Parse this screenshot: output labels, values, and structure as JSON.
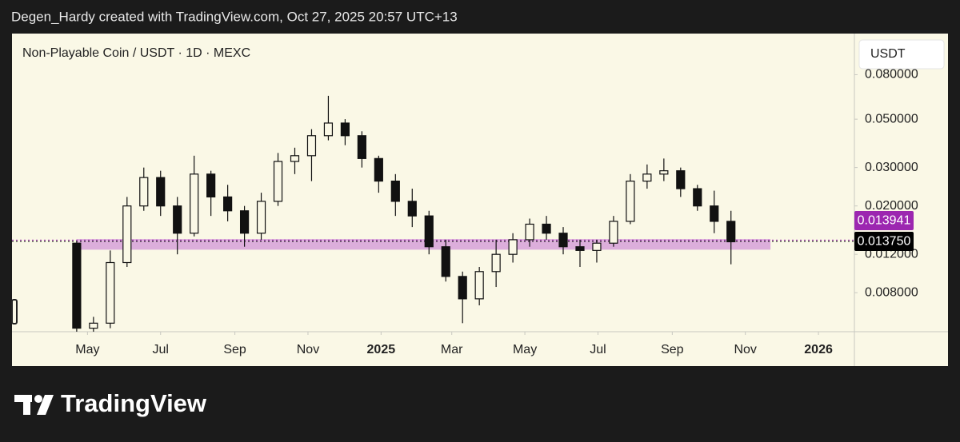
{
  "header": {
    "credit": "Degen_Hardy created with TradingView.com, Oct 27, 2025 20:57 UTC+13"
  },
  "brand": "TradingView",
  "chart_data": {
    "type": "candlestick",
    "title": "Non-Playable Coin / USDT · 1D · MEXC",
    "currency": "USDT",
    "log_scale": true,
    "x": [
      "2024-04-22",
      "2024-05-06",
      "2024-05-20",
      "2024-06-03",
      "2024-06-17",
      "2024-07-01",
      "2024-07-15",
      "2024-07-29",
      "2024-08-12",
      "2024-08-26",
      "2024-09-09",
      "2024-09-23",
      "2024-10-07",
      "2024-10-21",
      "2024-11-04",
      "2024-11-18",
      "2024-12-02",
      "2024-12-16",
      "2024-12-30",
      "2025-01-13",
      "2025-01-27",
      "2025-02-10",
      "2025-02-24",
      "2025-03-10",
      "2025-03-24",
      "2025-04-07",
      "2025-04-21",
      "2025-05-05",
      "2025-05-19",
      "2025-06-02",
      "2025-06-16",
      "2025-06-30",
      "2025-07-14",
      "2025-07-28",
      "2025-08-11",
      "2025-08-25",
      "2025-09-08",
      "2025-09-22",
      "2025-10-06",
      "2025-10-20"
    ],
    "open": [
      0.0135,
      0.0055,
      0.0058,
      0.011,
      0.02,
      0.027,
      0.02,
      0.015,
      0.028,
      0.022,
      0.019,
      0.015,
      0.021,
      0.032,
      0.034,
      0.042,
      0.048,
      0.042,
      0.033,
      0.026,
      0.021,
      0.018,
      0.013,
      0.0095,
      0.0075,
      0.01,
      0.012,
      0.014,
      0.0165,
      0.015,
      0.013,
      0.0125,
      0.0135,
      0.017,
      0.026,
      0.028,
      0.029,
      0.024,
      0.02,
      0.017
    ],
    "high": [
      0.0138,
      0.0062,
      0.0125,
      0.022,
      0.03,
      0.029,
      0.022,
      0.034,
      0.029,
      0.025,
      0.02,
      0.023,
      0.035,
      0.037,
      0.045,
      0.064,
      0.05,
      0.044,
      0.034,
      0.028,
      0.024,
      0.019,
      0.014,
      0.01,
      0.0105,
      0.014,
      0.015,
      0.0175,
      0.018,
      0.016,
      0.014,
      0.014,
      0.018,
      0.028,
      0.031,
      0.033,
      0.03,
      0.025,
      0.0235,
      0.019
    ],
    "low": [
      0.005,
      0.005,
      0.0055,
      0.0105,
      0.019,
      0.018,
      0.012,
      0.0145,
      0.018,
      0.017,
      0.013,
      0.014,
      0.02,
      0.028,
      0.026,
      0.04,
      0.038,
      0.03,
      0.023,
      0.018,
      0.016,
      0.012,
      0.009,
      0.0058,
      0.007,
      0.0085,
      0.011,
      0.013,
      0.014,
      0.012,
      0.0105,
      0.011,
      0.013,
      0.0165,
      0.024,
      0.026,
      0.022,
      0.019,
      0.015,
      0.0108
    ],
    "close": [
      0.0055,
      0.0058,
      0.011,
      0.02,
      0.027,
      0.02,
      0.015,
      0.028,
      0.022,
      0.019,
      0.015,
      0.021,
      0.032,
      0.034,
      0.042,
      0.048,
      0.042,
      0.033,
      0.026,
      0.021,
      0.018,
      0.013,
      0.0095,
      0.0075,
      0.01,
      0.012,
      0.014,
      0.0165,
      0.015,
      0.013,
      0.0125,
      0.0135,
      0.017,
      0.026,
      0.028,
      0.029,
      0.024,
      0.02,
      0.017,
      0.0137
    ],
    "xlim": [
      "2024-02-28",
      "2026-01-31"
    ],
    "xticks": [
      {
        "value": "2024-05-01",
        "label": "May"
      },
      {
        "value": "2024-07-01",
        "label": "Jul"
      },
      {
        "value": "2024-09-01",
        "label": "Sep"
      },
      {
        "value": "2024-11-01",
        "label": "Nov"
      },
      {
        "value": "2025-01-01",
        "label": "2025"
      },
      {
        "value": "2025-03-01",
        "label": "Mar"
      },
      {
        "value": "2025-05-01",
        "label": "May"
      },
      {
        "value": "2025-07-01",
        "label": "Jul"
      },
      {
        "value": "2025-09-01",
        "label": "Sep"
      },
      {
        "value": "2025-11-01",
        "label": "Nov"
      },
      {
        "value": "2026-01-01",
        "label": "2026"
      }
    ],
    "ylim": [
      0.0053,
      0.1235
    ],
    "yticks": [
      {
        "value": 0.008,
        "label": "0.008000"
      },
      {
        "value": 0.012,
        "label": "0.012000"
      },
      {
        "value": 0.02,
        "label": "0.020000"
      },
      {
        "value": 0.03,
        "label": "0.030000"
      },
      {
        "value": 0.05,
        "label": "0.050000"
      },
      {
        "value": 0.08,
        "label": "0.080000"
      }
    ],
    "zone": {
      "low": 0.0126,
      "high": 0.0141,
      "start": "2024-04-22",
      "end": "2025-11-22",
      "color": "#dcaedb"
    },
    "price_markers": [
      {
        "value": 0.013941,
        "label": "0.013941",
        "color": "#9c27b0"
      },
      {
        "value": 0.01375,
        "label": "0.013750",
        "color": "#000000"
      }
    ]
  }
}
